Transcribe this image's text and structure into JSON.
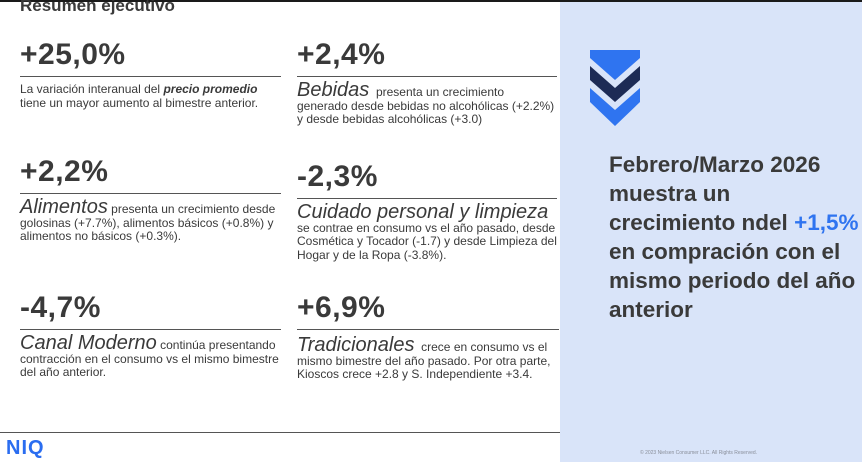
{
  "title": "Resumen ejecutivo",
  "stats": {
    "precio": {
      "value": "+25,0%",
      "pre": "La variación interanual del ",
      "strong": "precio promedio",
      "post": " tiene un mayor aumento al bimestre anterior."
    },
    "bebidas": {
      "value": "+2,4%",
      "category": "Bebidas",
      "text": "presenta un crecimiento generado desde bebidas no alcohólicas (+2.2%) y desde bebidas alcohólicas (+3.0)"
    },
    "alimentos": {
      "value": "+2,2%",
      "category": "Alimentos",
      "text": "presenta un crecimiento desde golosinas (+7.7%), alimentos básicos (+0.8%) y alimentos no básicos (+0.3%)."
    },
    "cuidado": {
      "value": "-2,3%",
      "category": "Cuidado personal y limpieza",
      "text": "se contrae en consumo vs el año pasado, desde Cosmética y Tocador (-1.7) y desde Limpieza del Hogar y de la Ropa (-3.8%)."
    },
    "canal": {
      "value": "-4,7%",
      "category": "Canal Moderno",
      "text": "continúa presentando contracción en el consumo vs el mismo bimestre del año anterior."
    },
    "tradicionales": {
      "value": "+6,9%",
      "category": "Tradicionales",
      "text": "crece en consumo vs el mismo bimestre del año pasado. Por otra parte, Kioscos crece +2.8 y S. Independiente +3.4."
    }
  },
  "panel": {
    "headline_pre": "Febrero/Marzo 2026 muestra un crecimiento ndel",
    "headline_accent": "+1,5%",
    "headline_post": "en compración con el mismo periodo del año anterior",
    "icon": "double-chevron-down-icon",
    "copyright": "© 2023 Nielsen Consumer LLC. All Rights Reserved."
  },
  "logo": "NIQ",
  "colors": {
    "accent": "#2f74f0",
    "panel_bg": "#d9e4f9",
    "chevron_dark": "#1d2b55"
  }
}
